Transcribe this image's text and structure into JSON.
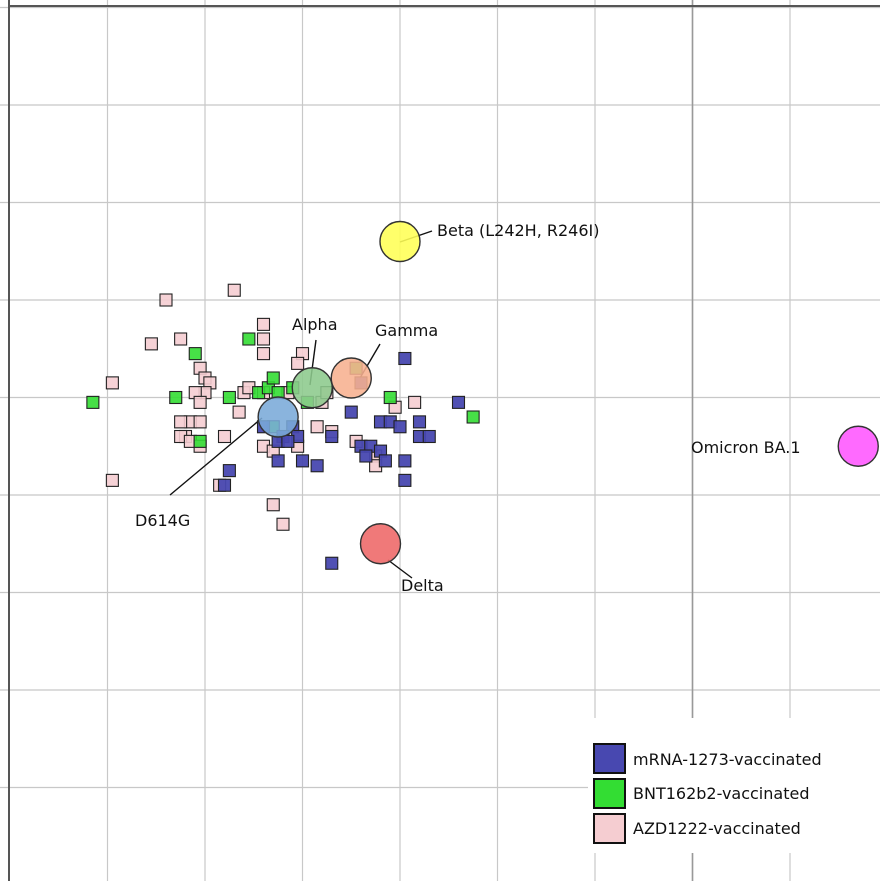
{
  "colors": {
    "mrna": "#4848b0",
    "bnt": "#33dd33",
    "azd": "#f5cdd1",
    "grid": "#c8c8c8",
    "frame": "#555555"
  },
  "chart_data": {
    "type": "scatter",
    "title": "",
    "xlabel": "",
    "ylabel": "",
    "grid": true,
    "legend_placement": "bottom-right",
    "xlim": [
      0,
      9
    ],
    "ylim": [
      0,
      9
    ],
    "antigens": [
      {
        "name": "Beta (L242H, R246I)",
        "x": 4.0,
        "y": 6.6,
        "color": "#ffff55"
      },
      {
        "name": "Alpha",
        "x": 3.1,
        "y": 5.1,
        "color": "#8cc98c"
      },
      {
        "name": "Gamma",
        "x": 3.5,
        "y": 5.2,
        "color": "#f7b08f"
      },
      {
        "name": "D614G",
        "x": 2.75,
        "y": 4.8,
        "color": "#7aaad8"
      },
      {
        "name": "Delta",
        "x": 3.8,
        "y": 3.5,
        "color": "#ee6666"
      },
      {
        "name": "Omicron BA.1",
        "x": 8.7,
        "y": 4.5,
        "color": "#ff55ff"
      }
    ],
    "legend": [
      {
        "label": "mRNA-1273-vaccinated",
        "key": "mrna"
      },
      {
        "label": "BNT162b2-vaccinated",
        "key": "bnt"
      },
      {
        "label": "AZD1222-vaccinated",
        "key": "azd"
      }
    ],
    "series": [
      {
        "name": "mRNA-1273-vaccinated",
        "points": [
          [
            4.05,
            5.4
          ],
          [
            3.6,
            5.15
          ],
          [
            4.6,
            4.95
          ],
          [
            3.5,
            4.85
          ],
          [
            3.8,
            4.75
          ],
          [
            3.9,
            4.75
          ],
          [
            4.0,
            4.7
          ],
          [
            4.2,
            4.75
          ],
          [
            4.2,
            4.6
          ],
          [
            4.3,
            4.6
          ],
          [
            3.3,
            4.6
          ],
          [
            3.6,
            4.5
          ],
          [
            3.7,
            4.5
          ],
          [
            3.8,
            4.45
          ],
          [
            3.65,
            4.4
          ],
          [
            3.85,
            4.35
          ],
          [
            4.05,
            4.35
          ],
          [
            3.0,
            4.35
          ],
          [
            3.15,
            4.3
          ],
          [
            2.75,
            4.35
          ],
          [
            2.6,
            4.7
          ],
          [
            2.9,
            4.7
          ],
          [
            2.8,
            4.6
          ],
          [
            2.95,
            4.6
          ],
          [
            2.75,
            4.55
          ],
          [
            2.85,
            4.55
          ],
          [
            2.25,
            4.25
          ],
          [
            2.2,
            4.1
          ],
          [
            4.05,
            4.15
          ],
          [
            3.3,
            3.3
          ]
        ]
      },
      {
        "name": "BNT162b2-vaccinated",
        "points": [
          [
            0.85,
            4.95
          ],
          [
            1.7,
            5.0
          ],
          [
            1.9,
            5.45
          ],
          [
            2.45,
            5.6
          ],
          [
            1.95,
            4.55
          ],
          [
            2.25,
            5.0
          ],
          [
            2.55,
            5.05
          ],
          [
            2.65,
            5.1
          ],
          [
            2.75,
            5.05
          ],
          [
            2.9,
            5.1
          ],
          [
            2.7,
            5.2
          ],
          [
            3.05,
            4.95
          ],
          [
            3.55,
            5.3
          ],
          [
            3.9,
            5.0
          ],
          [
            4.75,
            4.8
          ],
          [
            2.7,
            4.7
          ]
        ]
      },
      {
        "name": "AZD1222-vaccinated",
        "points": [
          [
            1.6,
            6.0
          ],
          [
            2.3,
            6.1
          ],
          [
            1.45,
            5.55
          ],
          [
            1.75,
            5.6
          ],
          [
            2.6,
            5.75
          ],
          [
            2.6,
            5.6
          ],
          [
            2.6,
            5.45
          ],
          [
            3.0,
            5.45
          ],
          [
            2.95,
            5.35
          ],
          [
            1.05,
            5.15
          ],
          [
            1.95,
            5.3
          ],
          [
            2.0,
            5.2
          ],
          [
            2.05,
            5.15
          ],
          [
            2.0,
            5.05
          ],
          [
            1.9,
            5.05
          ],
          [
            1.95,
            4.95
          ],
          [
            2.4,
            5.05
          ],
          [
            2.45,
            5.1
          ],
          [
            2.6,
            5.05
          ],
          [
            2.85,
            5.05
          ],
          [
            3.2,
            4.95
          ],
          [
            3.25,
            5.05
          ],
          [
            4.15,
            4.95
          ],
          [
            3.95,
            4.9
          ],
          [
            2.35,
            4.85
          ],
          [
            1.85,
            4.75
          ],
          [
            1.95,
            4.75
          ],
          [
            1.75,
            4.75
          ],
          [
            1.8,
            4.6
          ],
          [
            1.75,
            4.6
          ],
          [
            1.85,
            4.55
          ],
          [
            1.95,
            4.5
          ],
          [
            2.2,
            4.6
          ],
          [
            2.6,
            4.5
          ],
          [
            3.15,
            4.7
          ],
          [
            3.3,
            4.65
          ],
          [
            3.55,
            4.55
          ],
          [
            3.75,
            4.4
          ],
          [
            3.75,
            4.3
          ],
          [
            2.95,
            4.5
          ],
          [
            2.7,
            4.45
          ],
          [
            2.15,
            4.1
          ],
          [
            2.7,
            3.9
          ],
          [
            2.8,
            3.7
          ],
          [
            1.05,
            4.15
          ]
        ]
      }
    ]
  }
}
